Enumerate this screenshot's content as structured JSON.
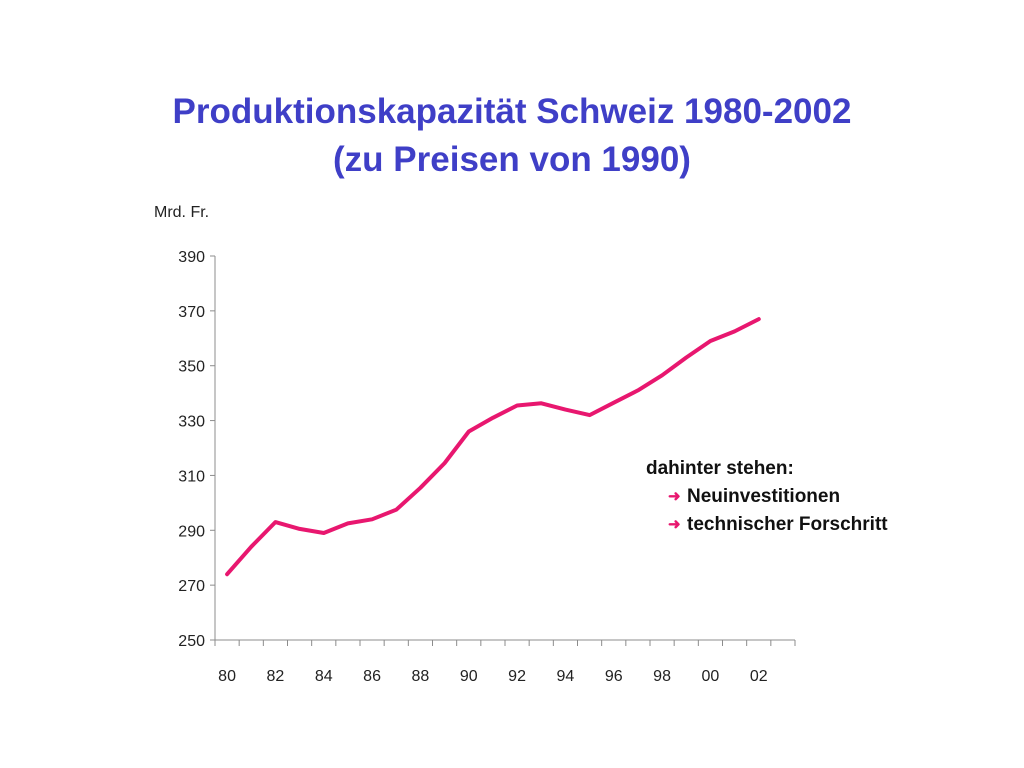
{
  "slide": {
    "title_line1": "Produktionskapazität Schweiz 1980-2002",
    "title_line2": "(zu Preisen von 1990)",
    "accent_color": "#3f3fc7"
  },
  "note": {
    "heading": "dahinter stehen:",
    "items": [
      {
        "icon": "right-arrow-icon",
        "label": "Neuinvestitionen"
      },
      {
        "icon": "right-arrow-icon",
        "label": "technischer Forschritt"
      }
    ],
    "arrow_color": "#e8176f"
  },
  "chart_data": {
    "type": "line",
    "title": "",
    "xlabel": "",
    "ylabel": "Mrd. Fr.",
    "ylim": [
      250,
      390
    ],
    "yticks": [
      "250",
      "270",
      "290",
      "310",
      "330",
      "350",
      "370",
      "390"
    ],
    "xticks": [
      "80",
      "82",
      "84",
      "86",
      "88",
      "90",
      "92",
      "94",
      "96",
      "98",
      "00",
      "02"
    ],
    "grid": false,
    "line_color": "#e8176f",
    "series": [
      {
        "x": [
          1980,
          1981,
          1982,
          1983,
          1984,
          1985,
          1986,
          1987,
          1988,
          1989,
          1990,
          1991,
          1992,
          1993,
          1994,
          1995,
          1996,
          1997,
          1998,
          1999,
          2000,
          2001,
          2002
        ],
        "values": [
          274,
          284,
          293,
          290.5,
          289,
          292.5,
          294,
          297.5,
          305.5,
          314.5,
          326,
          331,
          335.5,
          336.3,
          334,
          332,
          336.5,
          341,
          346.5,
          353,
          359,
          362.5,
          367
        ]
      }
    ]
  }
}
